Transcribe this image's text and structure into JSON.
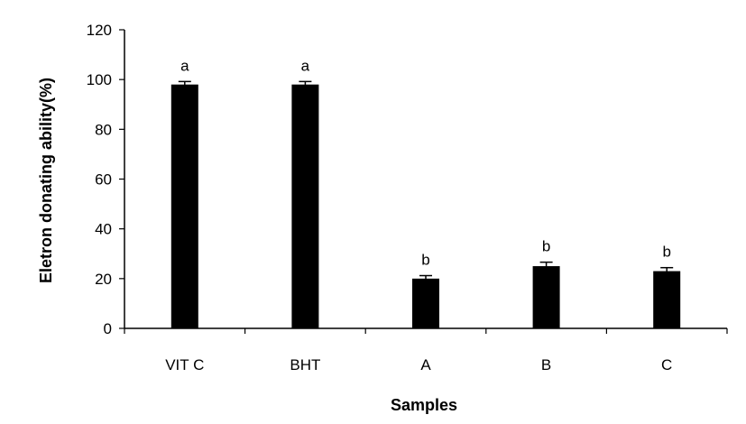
{
  "chart_data": {
    "type": "bar",
    "title": "",
    "xlabel": "Samples",
    "ylabel": "Eletron donating ability(%)",
    "categories": [
      "VIT C",
      "BHT",
      "A",
      "B",
      "C"
    ],
    "series": [
      {
        "values": [
          98,
          98,
          20,
          25,
          23
        ],
        "errors": [
          1.2,
          1.2,
          1.2,
          1.6,
          1.4
        ],
        "labels": [
          "a",
          "a",
          "b",
          "b",
          "b"
        ]
      }
    ],
    "ylim": [
      0,
      120
    ],
    "yticks": [
      0,
      20,
      40,
      60,
      80,
      100,
      120
    ],
    "grid": false,
    "legend": "none",
    "bar_color": "#000000"
  }
}
